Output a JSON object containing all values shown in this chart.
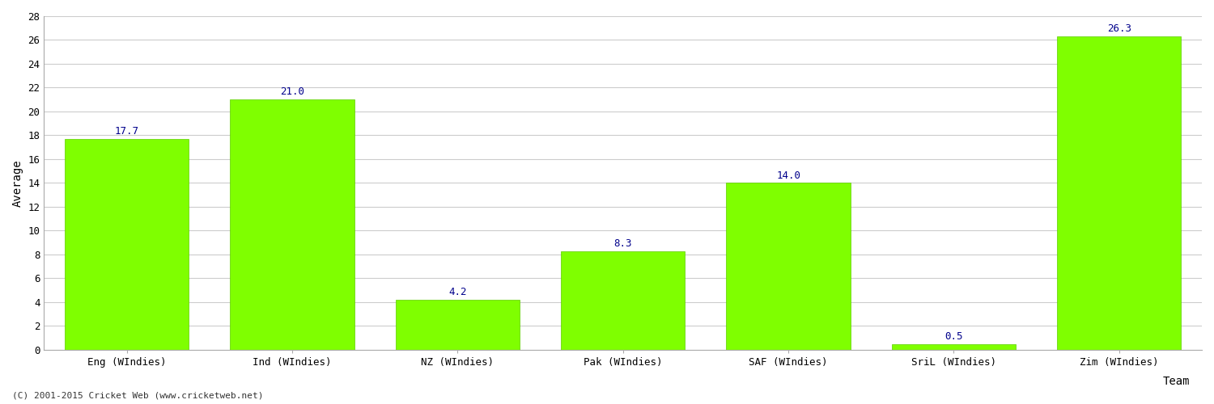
{
  "categories": [
    "Eng (WIndies)",
    "Ind (WIndies)",
    "NZ (WIndies)",
    "Pak (WIndies)",
    "SAF (WIndies)",
    "SriL (WIndies)",
    "Zim (WIndies)"
  ],
  "values": [
    17.7,
    21.0,
    4.2,
    8.3,
    14.0,
    0.5,
    26.3
  ],
  "bar_color": "#7fff00",
  "bar_edgecolor": "#5dcc00",
  "ylabel": "Average",
  "xlabel": "Team",
  "ylim": [
    0,
    28
  ],
  "yticks": [
    0,
    2,
    4,
    6,
    8,
    10,
    12,
    14,
    16,
    18,
    20,
    22,
    24,
    26,
    28
  ],
  "grid_color": "#cccccc",
  "background_color": "#ffffff",
  "annotation_color": "#00008b",
  "annotation_fontsize": 9,
  "axis_label_fontsize": 10,
  "tick_fontsize": 9,
  "footer_text": "(C) 2001-2015 Cricket Web (www.cricketweb.net)",
  "footer_fontsize": 8,
  "footer_color": "#333333"
}
